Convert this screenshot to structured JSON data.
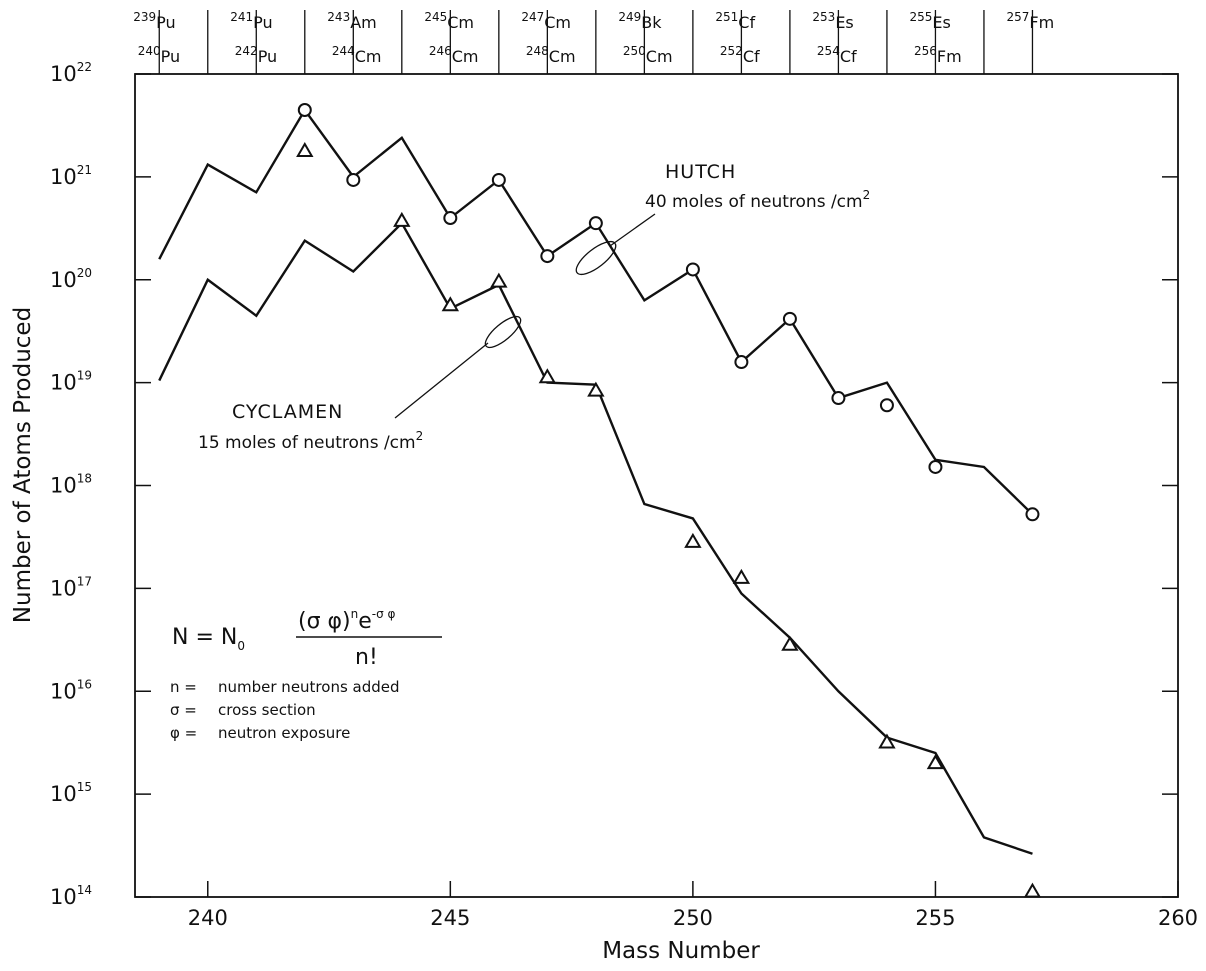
{
  "chart_data": {
    "type": "line",
    "title": "",
    "xlabel": "Mass Number",
    "ylabel": "Number of Atoms Produced",
    "xlim": [
      238.5,
      260
    ],
    "ylim_log10": [
      14,
      22
    ],
    "y_scale": "log",
    "x_ticks": [
      240,
      245,
      250,
      255,
      260
    ],
    "y_ticks": [
      {
        "base": "10",
        "exp": "14"
      },
      {
        "base": "10",
        "exp": "15"
      },
      {
        "base": "10",
        "exp": "16"
      },
      {
        "base": "10",
        "exp": "17"
      },
      {
        "base": "10",
        "exp": "18"
      },
      {
        "base": "10",
        "exp": "19"
      },
      {
        "base": "10",
        "exp": "20"
      },
      {
        "base": "10",
        "exp": "21"
      },
      {
        "base": "10",
        "exp": "22"
      }
    ],
    "top_isotopes": [
      {
        "mass": "239",
        "element": "Pu",
        "x": 239,
        "row": 1
      },
      {
        "mass": "240",
        "element": "Pu",
        "x": 240,
        "row": 2
      },
      {
        "mass": "241",
        "element": "Pu",
        "x": 241,
        "row": 1
      },
      {
        "mass": "242",
        "element": "Pu",
        "x": 242,
        "row": 2
      },
      {
        "mass": "243",
        "element": "Am",
        "x": 243,
        "row": 1
      },
      {
        "mass": "244",
        "element": "Cm",
        "x": 244,
        "row": 2
      },
      {
        "mass": "245",
        "element": "Cm",
        "x": 245,
        "row": 1
      },
      {
        "mass": "246",
        "element": "Cm",
        "x": 246,
        "row": 2
      },
      {
        "mass": "247",
        "element": "Cm",
        "x": 247,
        "row": 1
      },
      {
        "mass": "248",
        "element": "Cm",
        "x": 248,
        "row": 2
      },
      {
        "mass": "249",
        "element": "Bk",
        "x": 249,
        "row": 1
      },
      {
        "mass": "250",
        "element": "Cm",
        "x": 250,
        "row": 2
      },
      {
        "mass": "251",
        "element": "Cf",
        "x": 251,
        "row": 1
      },
      {
        "mass": "252",
        "element": "Cf",
        "x": 252,
        "row": 2
      },
      {
        "mass": "253",
        "element": "Es",
        "x": 253,
        "row": 1
      },
      {
        "mass": "254",
        "element": "Cf",
        "x": 254,
        "row": 2
      },
      {
        "mass": "255",
        "element": "Es",
        "x": 255,
        "row": 1
      },
      {
        "mass": "256",
        "element": "Fm",
        "x": 256,
        "row": 2
      },
      {
        "mass": "257",
        "element": "Fm",
        "x": 257,
        "row": 1
      }
    ],
    "series": [
      {
        "name": "HUTCH",
        "marker": "circle",
        "line": {
          "x": [
            239,
            240,
            241,
            242,
            243,
            244,
            245,
            246,
            247,
            248,
            249,
            250,
            251,
            252,
            253,
            254,
            255,
            256,
            257
          ],
          "log10y": [
            20.2,
            21.12,
            20.85,
            21.65,
            21.0,
            21.38,
            20.6,
            20.97,
            20.23,
            20.55,
            19.8,
            20.1,
            19.2,
            19.62,
            18.85,
            19.0,
            18.25,
            18.18,
            17.72
          ]
        },
        "points": {
          "x": [
            242,
            243,
            245,
            246,
            247,
            248,
            250,
            251,
            252,
            253,
            254,
            255,
            257
          ],
          "log10y": [
            21.65,
            20.97,
            20.6,
            20.97,
            20.23,
            20.55,
            20.1,
            19.2,
            19.62,
            18.85,
            18.78,
            18.18,
            17.72
          ]
        }
      },
      {
        "name": "CYCLAMEN",
        "marker": "triangle",
        "line": {
          "x": [
            239,
            240,
            241,
            242,
            243,
            244,
            245,
            246,
            247,
            248,
            249,
            250,
            251,
            252,
            253,
            254,
            255,
            256,
            257
          ],
          "log10y": [
            19.02,
            20.0,
            19.65,
            20.38,
            20.08,
            20.55,
            19.72,
            19.95,
            19.0,
            18.98,
            17.82,
            17.68,
            16.95,
            16.52,
            16.0,
            15.55,
            15.4,
            14.58,
            14.42
          ]
        },
        "points": {
          "x": [
            242,
            244,
            245,
            246,
            247,
            248,
            250,
            251,
            252,
            254,
            255,
            257
          ],
          "log10y": [
            21.25,
            20.57,
            19.75,
            19.98,
            19.05,
            18.92,
            17.45,
            17.1,
            16.45,
            15.5,
            15.3,
            14.05
          ]
        }
      }
    ],
    "annotations": {
      "hutch_title": "HUTCH",
      "hutch_sub_prefix": "40 moles of neutrons /cm",
      "hutch_sub_sup": "2",
      "cyclamen_title": "CYCLAMEN",
      "cyclamen_sub_prefix": "15 moles of neutrons /cm",
      "cyclamen_sub_sup": "2"
    },
    "equation": {
      "lhs": "N = N",
      "lhs_sub": "0",
      "numerator": "(σ φ)",
      "numerator_sup": "n",
      "numerator_e": "e",
      "numerator_e_sup": "-σ φ",
      "denominator": "n!",
      "legend": [
        {
          "symbol": "n =",
          "text": "number neutrons added"
        },
        {
          "symbol": "σ =",
          "text": "cross section"
        },
        {
          "symbol": "φ =",
          "text": "neutron exposure"
        }
      ]
    }
  }
}
